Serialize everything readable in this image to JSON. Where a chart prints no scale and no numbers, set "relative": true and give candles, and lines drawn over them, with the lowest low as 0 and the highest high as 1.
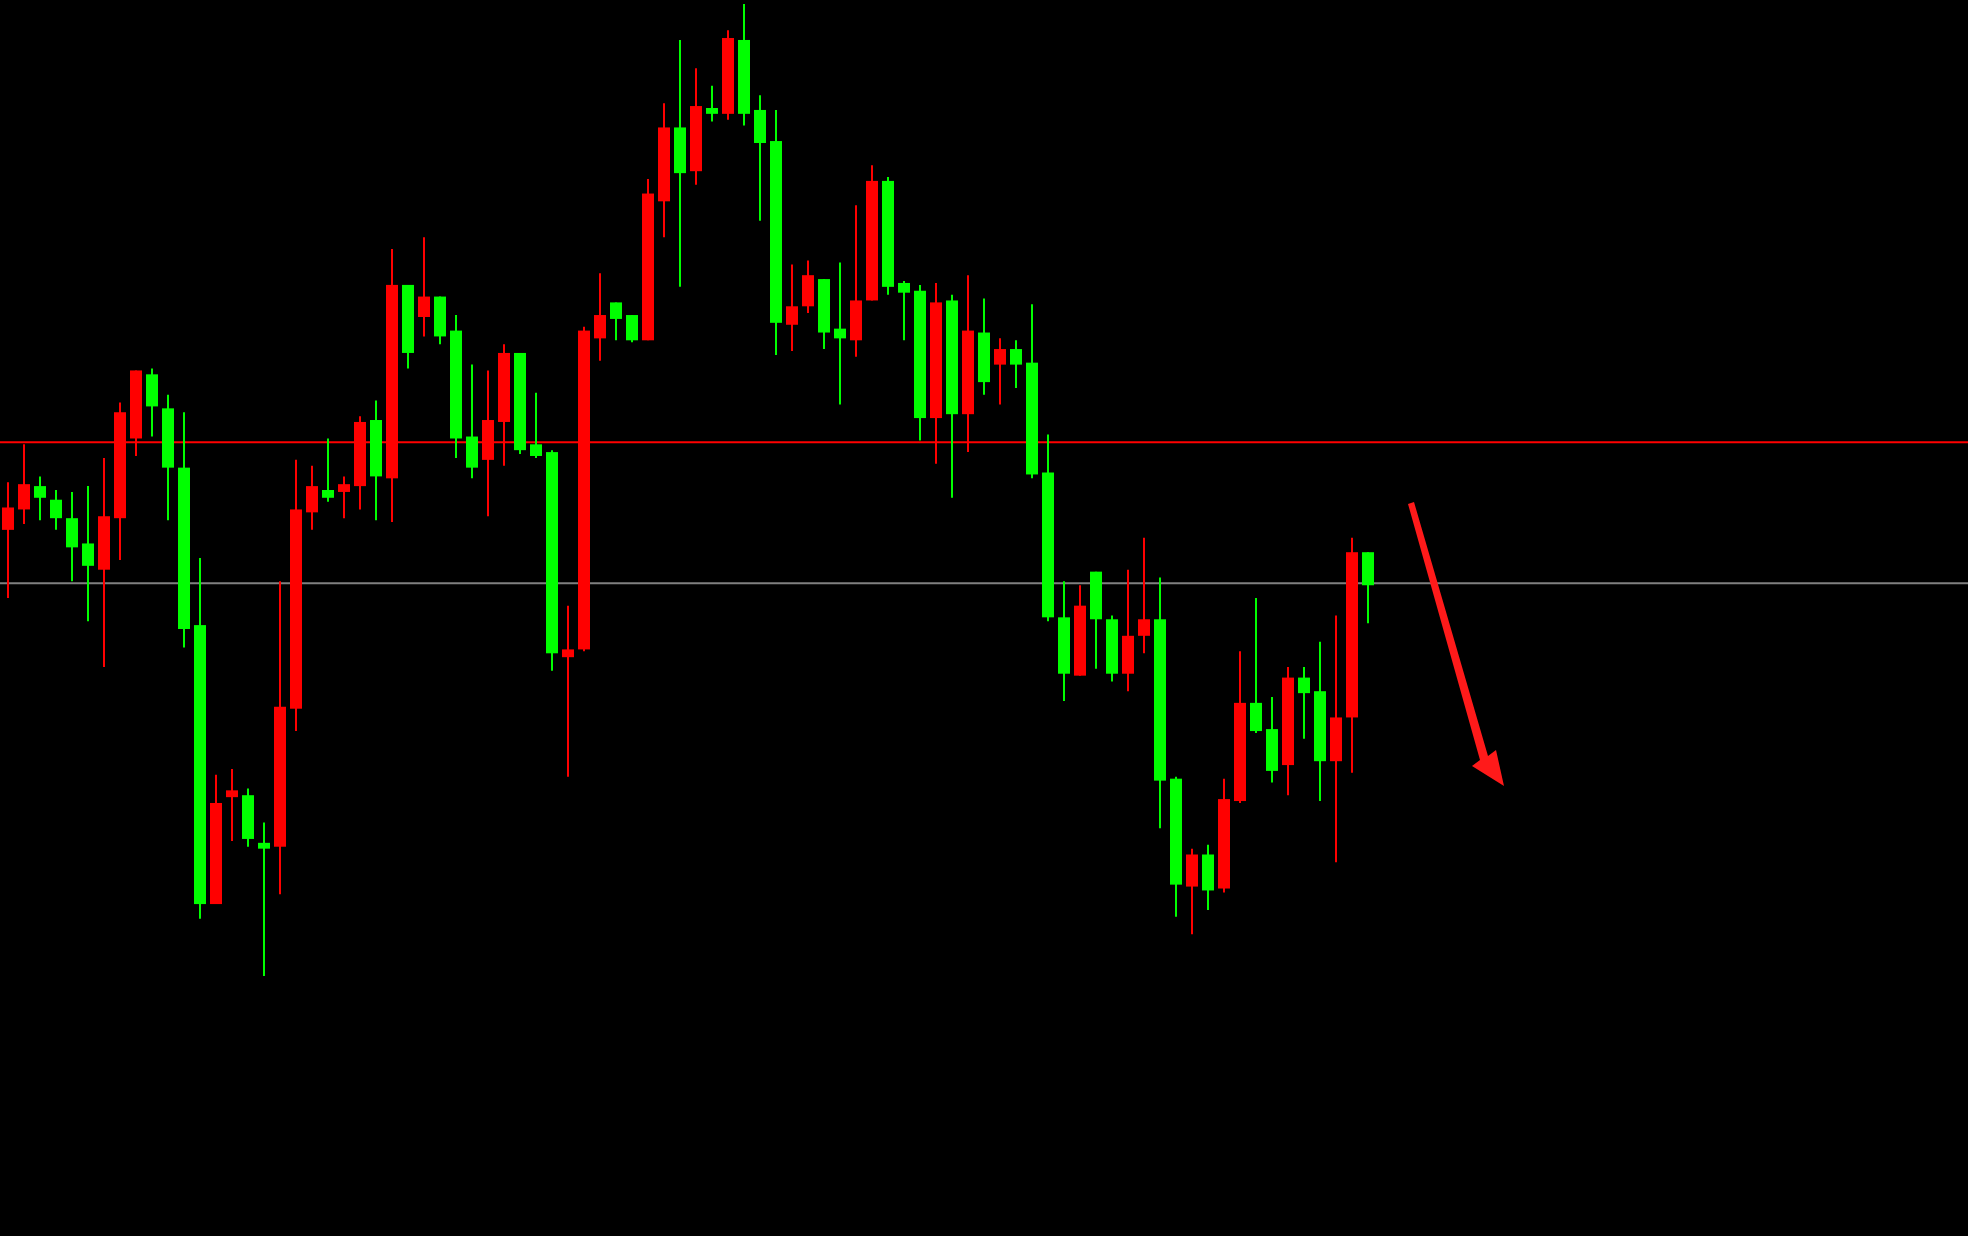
{
  "chart_data": {
    "type": "candlestick",
    "relative": true,
    "categories": [
      null,
      null,
      null,
      null,
      null,
      null,
      null,
      null,
      null,
      null,
      null,
      null,
      null,
      null,
      null,
      null,
      null,
      null,
      null,
      null,
      null,
      null,
      null,
      null,
      null,
      null,
      null,
      null,
      null,
      null,
      null,
      null,
      null,
      null,
      null,
      null,
      null,
      null,
      null,
      null,
      null,
      null,
      null,
      null,
      null,
      null,
      null,
      null,
      null,
      null,
      null,
      null,
      null,
      null,
      null,
      null,
      null,
      null,
      null,
      null,
      null,
      null,
      null,
      null,
      null,
      null,
      null,
      null,
      null,
      null,
      null,
      null,
      null,
      null,
      null,
      null,
      null,
      null,
      null,
      null,
      null,
      null,
      null,
      null,
      null,
      null
    ],
    "ohlc": [
      [
        0.459,
        0.508,
        0.389,
        0.482
      ],
      [
        0.48,
        0.547,
        0.465,
        0.506
      ],
      [
        0.504,
        0.514,
        0.469,
        0.492
      ],
      [
        0.49,
        0.5,
        0.459,
        0.471
      ],
      [
        0.471,
        0.498,
        0.406,
        0.441
      ],
      [
        0.445,
        0.504,
        0.365,
        0.422
      ],
      [
        0.418,
        0.533,
        0.318,
        0.473
      ],
      [
        0.471,
        0.59,
        0.428,
        0.58
      ],
      [
        0.553,
        0.623,
        0.535,
        0.623
      ],
      [
        0.619,
        0.625,
        0.555,
        0.586
      ],
      [
        0.584,
        0.598,
        0.469,
        0.523
      ],
      [
        0.523,
        0.58,
        0.338,
        0.357
      ],
      [
        0.361,
        0.43,
        0.059,
        0.074
      ],
      [
        0.074,
        0.207,
        0.074,
        0.178
      ],
      [
        0.184,
        0.213,
        0.139,
        0.191
      ],
      [
        0.186,
        0.193,
        0.133,
        0.141
      ],
      [
        0.137,
        0.158,
        0,
        0.131
      ],
      [
        0.133,
        0.406,
        0.084,
        0.277
      ],
      [
        0.275,
        0.531,
        0.252,
        0.48
      ],
      [
        0.477,
        0.525,
        0.459,
        0.504
      ],
      [
        0.5,
        0.553,
        0.488,
        0.492
      ],
      [
        0.498,
        0.514,
        0.471,
        0.506
      ],
      [
        0.504,
        0.576,
        0.48,
        0.57
      ],
      [
        0.572,
        0.592,
        0.469,
        0.514
      ],
      [
        0.512,
        0.748,
        0.467,
        0.711
      ],
      [
        0.711,
        0.711,
        0.625,
        0.641
      ],
      [
        0.678,
        0.76,
        0.658,
        0.699
      ],
      [
        0.699,
        0.699,
        0.65,
        0.658
      ],
      [
        0.664,
        0.68,
        0.533,
        0.553
      ],
      [
        0.555,
        0.629,
        0.512,
        0.523
      ],
      [
        0.531,
        0.623,
        0.473,
        0.572
      ],
      [
        0.57,
        0.65,
        0.525,
        0.641
      ],
      [
        0.641,
        0.641,
        0.537,
        0.541
      ],
      [
        0.547,
        0.6,
        0.533,
        0.535
      ],
      [
        0.539,
        0.541,
        0.314,
        0.332
      ],
      [
        0.328,
        0.381,
        0.205,
        0.336
      ],
      [
        0.336,
        0.668,
        0.334,
        0.664
      ],
      [
        0.656,
        0.723,
        0.633,
        0.68
      ],
      [
        0.693,
        0.693,
        0.654,
        0.676
      ],
      [
        0.68,
        0.68,
        0.652,
        0.654
      ],
      [
        0.654,
        0.82,
        0.654,
        0.805
      ],
      [
        0.797,
        0.898,
        0.76,
        0.873
      ],
      [
        0.873,
        0.963,
        0.709,
        0.826
      ],
      [
        0.828,
        0.934,
        0.814,
        0.895
      ],
      [
        0.893,
        0.916,
        0.879,
        0.887
      ],
      [
        0.887,
        0.973,
        0.881,
        0.965
      ],
      [
        0.963,
        1,
        0.875,
        0.887
      ],
      [
        0.891,
        0.906,
        0.777,
        0.857
      ],
      [
        0.859,
        0.891,
        0.639,
        0.672
      ],
      [
        0.67,
        0.732,
        0.643,
        0.689
      ],
      [
        0.689,
        0.736,
        0.682,
        0.721
      ],
      [
        0.717,
        0.717,
        0.645,
        0.662
      ],
      [
        0.666,
        0.734,
        0.588,
        0.656
      ],
      [
        0.654,
        0.793,
        0.637,
        0.695
      ],
      [
        0.695,
        0.834,
        0.695,
        0.818
      ],
      [
        0.818,
        0.822,
        0.701,
        0.709
      ],
      [
        0.713,
        0.715,
        0.654,
        0.703
      ],
      [
        0.705,
        0.711,
        0.551,
        0.574
      ],
      [
        0.574,
        0.713,
        0.527,
        0.693
      ],
      [
        0.695,
        0.701,
        0.492,
        0.578
      ],
      [
        0.578,
        0.721,
        0.539,
        0.664
      ],
      [
        0.662,
        0.697,
        0.598,
        0.611
      ],
      [
        0.629,
        0.656,
        0.588,
        0.645
      ],
      [
        0.645,
        0.654,
        0.605,
        0.629
      ],
      [
        0.631,
        0.691,
        0.512,
        0.516
      ],
      [
        0.518,
        0.557,
        0.365,
        0.369
      ],
      [
        0.369,
        0.406,
        0.283,
        0.311
      ],
      [
        0.309,
        0.402,
        0.309,
        0.381
      ],
      [
        0.416,
        0.416,
        0.316,
        0.367
      ],
      [
        0.367,
        0.371,
        0.303,
        0.311
      ],
      [
        0.311,
        0.418,
        0.293,
        0.35
      ],
      [
        0.35,
        0.451,
        0.332,
        0.367
      ],
      [
        0.367,
        0.41,
        0.152,
        0.201
      ],
      [
        0.203,
        0.205,
        0.061,
        0.094
      ],
      [
        0.092,
        0.131,
        0.043,
        0.125
      ],
      [
        0.125,
        0.135,
        0.068,
        0.088
      ],
      [
        0.09,
        0.203,
        0.086,
        0.182
      ],
      [
        0.18,
        0.334,
        0.178,
        0.281
      ],
      [
        0.281,
        0.389,
        0.25,
        0.252
      ],
      [
        0.254,
        0.287,
        0.199,
        0.211
      ],
      [
        0.217,
        0.318,
        0.186,
        0.307
      ],
      [
        0.307,
        0.318,
        0.244,
        0.291
      ],
      [
        0.293,
        0.344,
        0.18,
        0.221
      ],
      [
        0.221,
        0.371,
        0.117,
        0.266
      ],
      [
        0.266,
        0.451,
        0.209,
        0.436
      ],
      [
        0.436,
        0.436,
        0.363,
        0.402
      ]
    ],
    "colors": [
      "#ff0000",
      "#ff0000",
      "#00ff00",
      "#00ff00",
      "#00ff00",
      "#00ff00",
      "#ff0000",
      "#ff0000",
      "#ff0000",
      "#00ff00",
      "#00ff00",
      "#00ff00",
      "#00ff00",
      "#ff0000",
      "#ff0000",
      "#00ff00",
      "#00ff00",
      "#ff0000",
      "#ff0000",
      "#ff0000",
      "#00ff00",
      "#ff0000",
      "#ff0000",
      "#00ff00",
      "#ff0000",
      "#00ff00",
      "#ff0000",
      "#00ff00",
      "#00ff00",
      "#00ff00",
      "#ff0000",
      "#ff0000",
      "#00ff00",
      "#00ff00",
      "#00ff00",
      "#ff0000",
      "#ff0000",
      "#ff0000",
      "#00ff00",
      "#00ff00",
      "#ff0000",
      "#ff0000",
      "#00ff00",
      "#ff0000",
      "#00ff00",
      "#ff0000",
      "#00ff00",
      "#00ff00",
      "#00ff00",
      "#ff0000",
      "#ff0000",
      "#00ff00",
      "#00ff00",
      "#ff0000",
      "#ff0000",
      "#00ff00",
      "#00ff00",
      "#00ff00",
      "#ff0000",
      "#00ff00",
      "#ff0000",
      "#00ff00",
      "#ff0000",
      "#00ff00",
      "#00ff00",
      "#00ff00",
      "#00ff00",
      "#ff0000",
      "#00ff00",
      "#00ff00",
      "#ff0000",
      "#ff0000",
      "#00ff00",
      "#00ff00",
      "#ff0000",
      "#00ff00",
      "#ff0000",
      "#ff0000",
      "#00ff00",
      "#00ff00",
      "#ff0000",
      "#00ff00",
      "#00ff00",
      "#ff0000",
      "#ff0000",
      "#00ff00"
    ],
    "ref_lines": [
      {
        "axis": "y",
        "value": 0.549,
        "color": "#ff0000"
      },
      {
        "axis": "y",
        "value": 0.404,
        "color": "#808080"
      }
    ]
  }
}
